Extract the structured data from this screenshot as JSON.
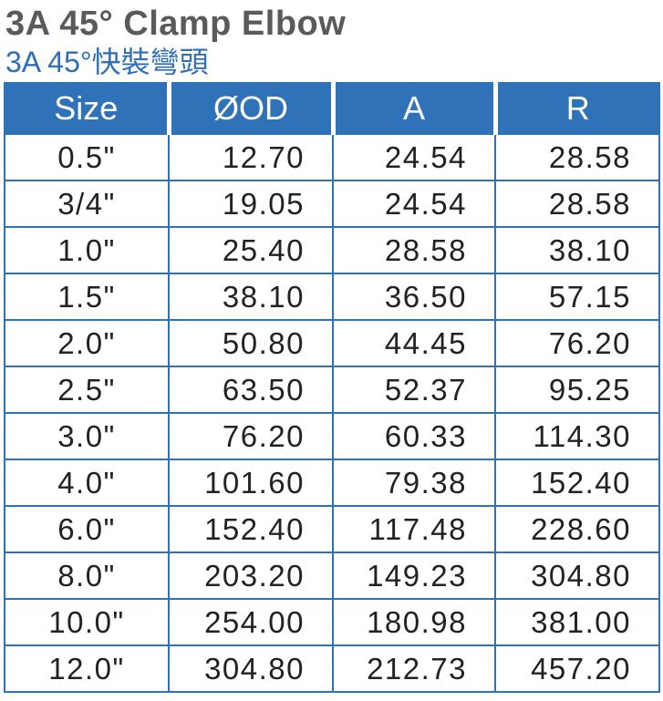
{
  "title": {
    "english": "3A 45° Clamp Elbow",
    "chinese": "3A 45°快裝彎頭"
  },
  "table": {
    "headers": [
      "Size",
      "ØOD",
      "A",
      "R"
    ],
    "rows": [
      [
        "0.5\"",
        "12.70",
        "24.54",
        "28.58"
      ],
      [
        "3/4\"",
        "19.05",
        "24.54",
        "28.58"
      ],
      [
        "1.0\"",
        "25.40",
        "28.58",
        "38.10"
      ],
      [
        "1.5\"",
        "38.10",
        "36.50",
        "57.15"
      ],
      [
        "2.0\"",
        "50.80",
        "44.45",
        "76.20"
      ],
      [
        "2.5\"",
        "63.50",
        "52.37",
        "95.25"
      ],
      [
        "3.0\"",
        "76.20",
        "60.33",
        "114.30"
      ],
      [
        "4.0\"",
        "101.60",
        "79.38",
        "152.40"
      ],
      [
        "6.0\"",
        "152.40",
        "117.48",
        "228.60"
      ],
      [
        "8.0\"",
        "203.20",
        "149.23",
        "304.80"
      ],
      [
        "10.0\"",
        "254.00",
        "180.98",
        "381.00"
      ],
      [
        "12.0\"",
        "304.80",
        "212.73",
        "457.20"
      ]
    ]
  },
  "colors": {
    "header_background": "#2f72b8",
    "title_gray": "#5a5a5a",
    "subtitle_blue": "#2e6fb7"
  }
}
